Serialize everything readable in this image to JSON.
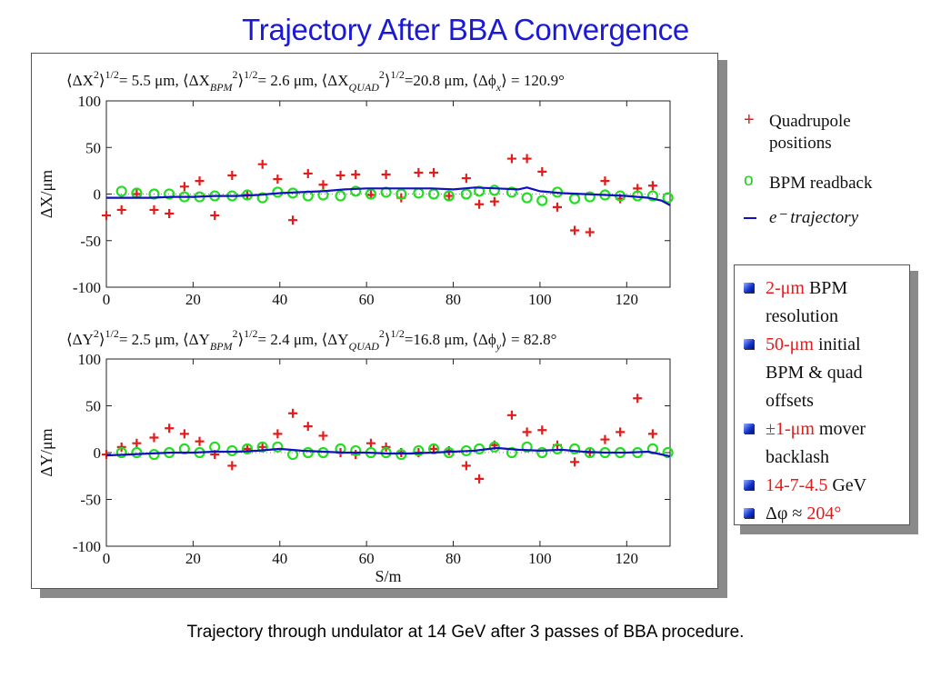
{
  "title": "Trajectory After BBA Convergence",
  "caption": "Trajectory through undulator at 14 GeV after 3 passes of BBA procedure.",
  "top_stats": {
    "t1": "⟨ΔX",
    "t2": "2",
    "t3": "⟩",
    "t4": "1/2",
    "t5": "= 5.5 μm, ⟨ΔX",
    "t6": "BPM",
    "t7": "2",
    "t8": "⟩",
    "t9": "1/2",
    "t10": "= 2.6 μm, ⟨ΔX",
    "t11": "QUAD",
    "t12": "2",
    "t13": "⟩",
    "t14": "1/2",
    "t15": "=20.8 μm, ⟨Δϕ",
    "t16": "x",
    "t17": "⟩ =  120.9°"
  },
  "bottom_stats": {
    "t1": "⟨ΔY",
    "t2": "2",
    "t3": "⟩",
    "t4": "1/2",
    "t5": "= 2.5 μm, ⟨ΔY",
    "t6": "BPM",
    "t7": "2",
    "t8": "⟩",
    "t9": "1/2",
    "t10": "= 2.4 μm, ⟨ΔY",
    "t11": "QUAD",
    "t12": "2",
    "t13": "⟩",
    "t14": "1/2",
    "t15": "=16.8 μm, ⟨Δϕ",
    "t16": "y",
    "t17": "⟩ =   82.8°"
  },
  "legend": {
    "quad_symbol": "+",
    "quad_label_1": "Quadrupole",
    "quad_label_2": "positions",
    "bpm_symbol": "o",
    "bpm_label": "BPM readback",
    "traj_label": "e⁻ trajectory"
  },
  "params": {
    "i1_red": "2-μm",
    "i1_rest": " BPM",
    "i1_line2": "resolution",
    "i2_red": "50-μm",
    "i2_rest": " initial",
    "i2_line2": "BPM & quad",
    "i2_line3": "offsets",
    "i3_red": "±1-μm",
    "i3_rest": " mover",
    "i3_line2": "backlash",
    "i4_red": "14-7-4.5",
    "i4_rest": " GeV",
    "i5_black": "Δφ ≈ ",
    "i5_red": "204°"
  },
  "colors": {
    "title": "#1a1ad6",
    "quad": "#e21b1b",
    "bpm": "#22dd22",
    "trajectory": "#1010c0"
  },
  "chart_data": [
    {
      "type": "scatter",
      "title": "",
      "xlabel": "",
      "ylabel": "ΔX/μm",
      "xlim": [
        0,
        130
      ],
      "ylim": [
        -100,
        100
      ],
      "xticks": [
        0,
        20,
        40,
        60,
        80,
        100,
        120
      ],
      "yticks": [
        100,
        50,
        0,
        -50,
        -100
      ],
      "series": [
        {
          "name": "Quadrupole positions",
          "marker": "plus",
          "x": [
            0,
            3.5,
            7,
            11,
            14.5,
            18,
            21.5,
            25,
            29,
            32.5,
            36,
            39.5,
            43,
            46.5,
            50,
            54,
            57.5,
            61,
            64.5,
            68,
            72,
            75.5,
            79,
            83,
            86,
            89.5,
            93.5,
            97,
            100.5,
            104,
            108,
            111.5,
            115,
            118.5,
            122.5,
            126
          ],
          "y": [
            -23,
            -17,
            0,
            -17,
            -21,
            8,
            14,
            -23,
            20,
            -1,
            32,
            16,
            -28,
            22,
            10,
            20,
            21,
            -1,
            21,
            -4,
            23,
            23,
            -2,
            17,
            -11,
            -8,
            38,
            38,
            24,
            -14,
            -39,
            -41,
            14,
            -5,
            6,
            9
          ]
        },
        {
          "name": "BPM readback",
          "marker": "circle",
          "x": [
            3.5,
            7,
            11,
            14.5,
            18,
            21.5,
            25,
            29,
            32.5,
            36,
            39.5,
            43,
            46.5,
            50,
            54,
            57.5,
            61,
            64.5,
            68,
            72,
            75.5,
            79,
            83,
            86,
            89.5,
            93.5,
            97,
            100.5,
            104,
            108,
            111.5,
            115,
            118.5,
            122.5,
            126,
            129.5
          ],
          "y": [
            3,
            1,
            0,
            0,
            -3,
            -3,
            -2,
            -2,
            -1,
            -4,
            2,
            1,
            -2,
            -1,
            -2,
            3,
            0,
            2,
            0,
            1,
            0,
            -2,
            0,
            3,
            4,
            2,
            -4,
            -7,
            2,
            -5,
            -3,
            -1,
            -2,
            -2,
            -2,
            -4
          ]
        },
        {
          "name": "e⁻ trajectory",
          "marker": "line",
          "x": [
            0,
            5,
            10,
            15,
            20,
            25,
            30,
            35,
            40,
            45,
            50,
            55,
            60,
            65,
            70,
            75,
            80,
            85,
            90,
            95,
            97,
            100,
            105,
            110,
            115,
            120,
            125,
            128,
            130
          ],
          "y": [
            -4,
            -4,
            -4,
            -3,
            -3,
            -2,
            -2,
            -1,
            1,
            2,
            3,
            5,
            6,
            6,
            6,
            6,
            5,
            7,
            6,
            5,
            7,
            3,
            1,
            0,
            -1,
            -2,
            -4,
            -7,
            -12
          ]
        }
      ]
    },
    {
      "type": "scatter",
      "title": "",
      "xlabel": "S/m",
      "ylabel": "ΔY/μm",
      "xlim": [
        0,
        130
      ],
      "ylim": [
        -100,
        100
      ],
      "xticks": [
        0,
        20,
        40,
        60,
        80,
        100,
        120
      ],
      "yticks": [
        100,
        50,
        0,
        -50,
        -100
      ],
      "series": [
        {
          "name": "Quadrupole positions",
          "marker": "plus",
          "x": [
            0,
            3.5,
            7,
            11,
            14.5,
            18,
            21.5,
            25,
            29,
            32.5,
            36,
            39.5,
            43,
            46.5,
            50,
            54,
            57.5,
            61,
            64.5,
            68,
            72,
            75.5,
            79,
            83,
            86,
            89.5,
            93.5,
            97,
            100.5,
            104,
            108,
            111.5,
            115,
            118.5,
            122.5,
            126
          ],
          "y": [
            -2,
            6,
            10,
            16,
            26,
            20,
            12,
            -2,
            -14,
            4,
            6,
            20,
            42,
            28,
            18,
            0,
            -2,
            10,
            6,
            0,
            0,
            4,
            2,
            -14,
            -28,
            8,
            40,
            22,
            24,
            8,
            -10,
            0,
            14,
            22,
            58,
            20
          ]
        },
        {
          "name": "BPM readback",
          "marker": "circle",
          "x": [
            3.5,
            7,
            11,
            14.5,
            18,
            21.5,
            25,
            29,
            32.5,
            36,
            39.5,
            43,
            46.5,
            50,
            54,
            57.5,
            61,
            64.5,
            68,
            72,
            75.5,
            79,
            83,
            86,
            89.5,
            93.5,
            97,
            100.5,
            104,
            108,
            111.5,
            115,
            118.5,
            122.5,
            126,
            129.5
          ],
          "y": [
            0,
            0,
            -2,
            0,
            4,
            0,
            6,
            2,
            4,
            6,
            6,
            -2,
            0,
            0,
            4,
            2,
            0,
            0,
            -2,
            2,
            4,
            0,
            2,
            4,
            6,
            0,
            6,
            0,
            4,
            4,
            0,
            0,
            0,
            0,
            4,
            0
          ]
        },
        {
          "name": "e⁻ trajectory",
          "marker": "line",
          "x": [
            0,
            5,
            10,
            15,
            20,
            25,
            30,
            35,
            40,
            45,
            50,
            55,
            60,
            65,
            70,
            75,
            80,
            85,
            90,
            95,
            100,
            105,
            110,
            115,
            120,
            125,
            130
          ],
          "y": [
            -3,
            -2,
            -1,
            0,
            0,
            1,
            1,
            2,
            4,
            2,
            1,
            0,
            0,
            -1,
            -1,
            0,
            1,
            2,
            5,
            3,
            2,
            3,
            1,
            0,
            0,
            1,
            -4
          ]
        }
      ]
    }
  ]
}
